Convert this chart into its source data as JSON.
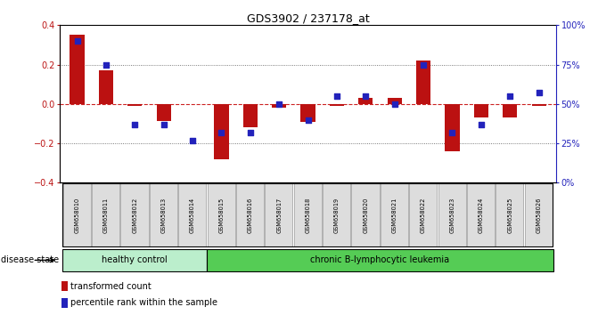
{
  "title": "GDS3902 / 237178_at",
  "samples": [
    "GSM658010",
    "GSM658011",
    "GSM658012",
    "GSM658013",
    "GSM658014",
    "GSM658015",
    "GSM658016",
    "GSM658017",
    "GSM658018",
    "GSM658019",
    "GSM658020",
    "GSM658021",
    "GSM658022",
    "GSM658023",
    "GSM658024",
    "GSM658025",
    "GSM658026"
  ],
  "red_bars": [
    0.35,
    0.17,
    -0.01,
    -0.085,
    0.0,
    -0.28,
    -0.12,
    -0.02,
    -0.09,
    -0.01,
    0.03,
    0.03,
    0.22,
    -0.24,
    -0.07,
    -0.07,
    -0.01
  ],
  "blue_squares": [
    90,
    75,
    37,
    37,
    27,
    32,
    32,
    50,
    40,
    55,
    55,
    50,
    75,
    32,
    37,
    55,
    57
  ],
  "healthy_count": 5,
  "total_count": 17,
  "ylim_left": [
    -0.4,
    0.4
  ],
  "ylim_right": [
    0,
    100
  ],
  "yticks_left": [
    -0.4,
    -0.2,
    0.0,
    0.2,
    0.4
  ],
  "yticks_right": [
    0,
    25,
    50,
    75,
    100
  ],
  "ytick_labels_right": [
    "0%",
    "25%",
    "50%",
    "75%",
    "100%"
  ],
  "red_color": "#bb1111",
  "blue_color": "#2222bb",
  "zero_line_color": "#cc2222",
  "dotted_line_color": "#555555",
  "healthy_bg": "#bbeecc",
  "leukemia_bg": "#55cc55",
  "sample_bg": "#dddddd",
  "bar_width": 0.5,
  "sq_size": 18,
  "disease_state_label": "disease state",
  "healthy_label": "healthy control",
  "leukemia_label": "chronic B-lymphocytic leukemia",
  "legend_red_label": "transformed count",
  "legend_blue_label": "percentile rank within the sample"
}
